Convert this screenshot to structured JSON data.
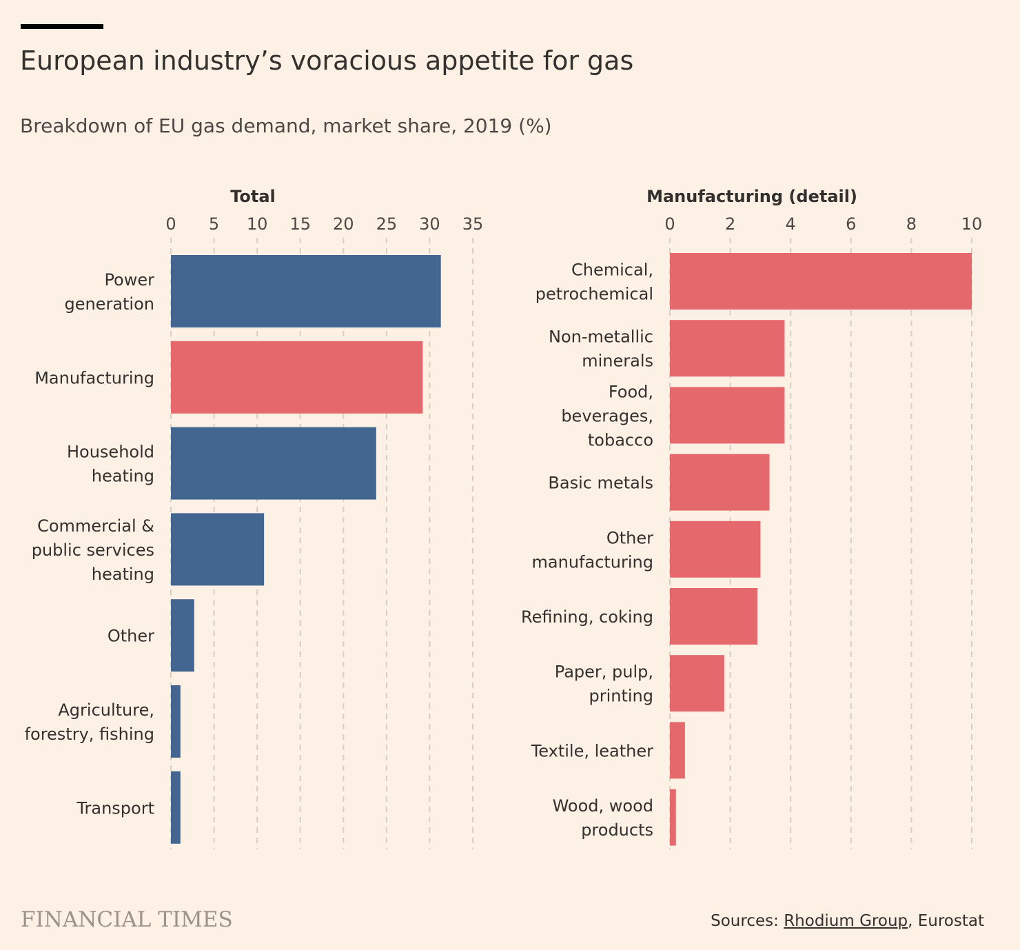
{
  "title": "European industry’s voracious appetite for gas",
  "subtitle": "Breakdown of EU gas demand, market share, 2019 (%)",
  "colors": {
    "background": "#fdf1e6",
    "blue": "#436690",
    "red": "#e5686c",
    "grid": "#d9cdc1"
  },
  "footer": {
    "logo": "FINANCIAL TIMES",
    "source_prefix": "Sources: ",
    "source_link": "Rhodium Group",
    "source_suffix": ", Eurostat"
  },
  "chart_data": [
    {
      "type": "bar",
      "orientation": "horizontal",
      "title": "Total",
      "xlim": [
        0,
        35
      ],
      "ticks": [
        0,
        5,
        10,
        15,
        20,
        25,
        30,
        35
      ],
      "grid": true,
      "categories": [
        [
          "Power",
          "generation"
        ],
        [
          "Manufacturing"
        ],
        [
          "Household",
          "heating"
        ],
        [
          "Commercial &",
          "public services",
          "heating"
        ],
        [
          "Other"
        ],
        [
          "Agriculture,",
          "forestry, fishing"
        ],
        [
          "Transport"
        ]
      ],
      "values": [
        31.3,
        29.2,
        23.8,
        10.8,
        2.7,
        1.1,
        1.1
      ],
      "highlight": [
        false,
        true,
        false,
        false,
        false,
        false,
        false
      ]
    },
    {
      "type": "bar",
      "orientation": "horizontal",
      "title": "Manufacturing (detail)",
      "xlim": [
        0,
        10
      ],
      "ticks": [
        0,
        2,
        4,
        6,
        8,
        10
      ],
      "grid": true,
      "categories": [
        [
          "Chemical,",
          "petrochemical"
        ],
        [
          "Non-metallic",
          "minerals"
        ],
        [
          "Food,",
          "beverages,",
          "tobacco"
        ],
        [
          "Basic metals"
        ],
        [
          "Other",
          "manufacturing"
        ],
        [
          "Refining, coking"
        ],
        [
          "Paper, pulp,",
          "printing"
        ],
        [
          "Textile, leather"
        ],
        [
          "Wood, wood",
          "products"
        ]
      ],
      "values": [
        10.0,
        3.8,
        3.8,
        3.3,
        3.0,
        2.9,
        1.8,
        0.5,
        0.2
      ],
      "highlight": [
        true,
        true,
        true,
        true,
        true,
        true,
        true,
        true,
        true
      ]
    }
  ]
}
